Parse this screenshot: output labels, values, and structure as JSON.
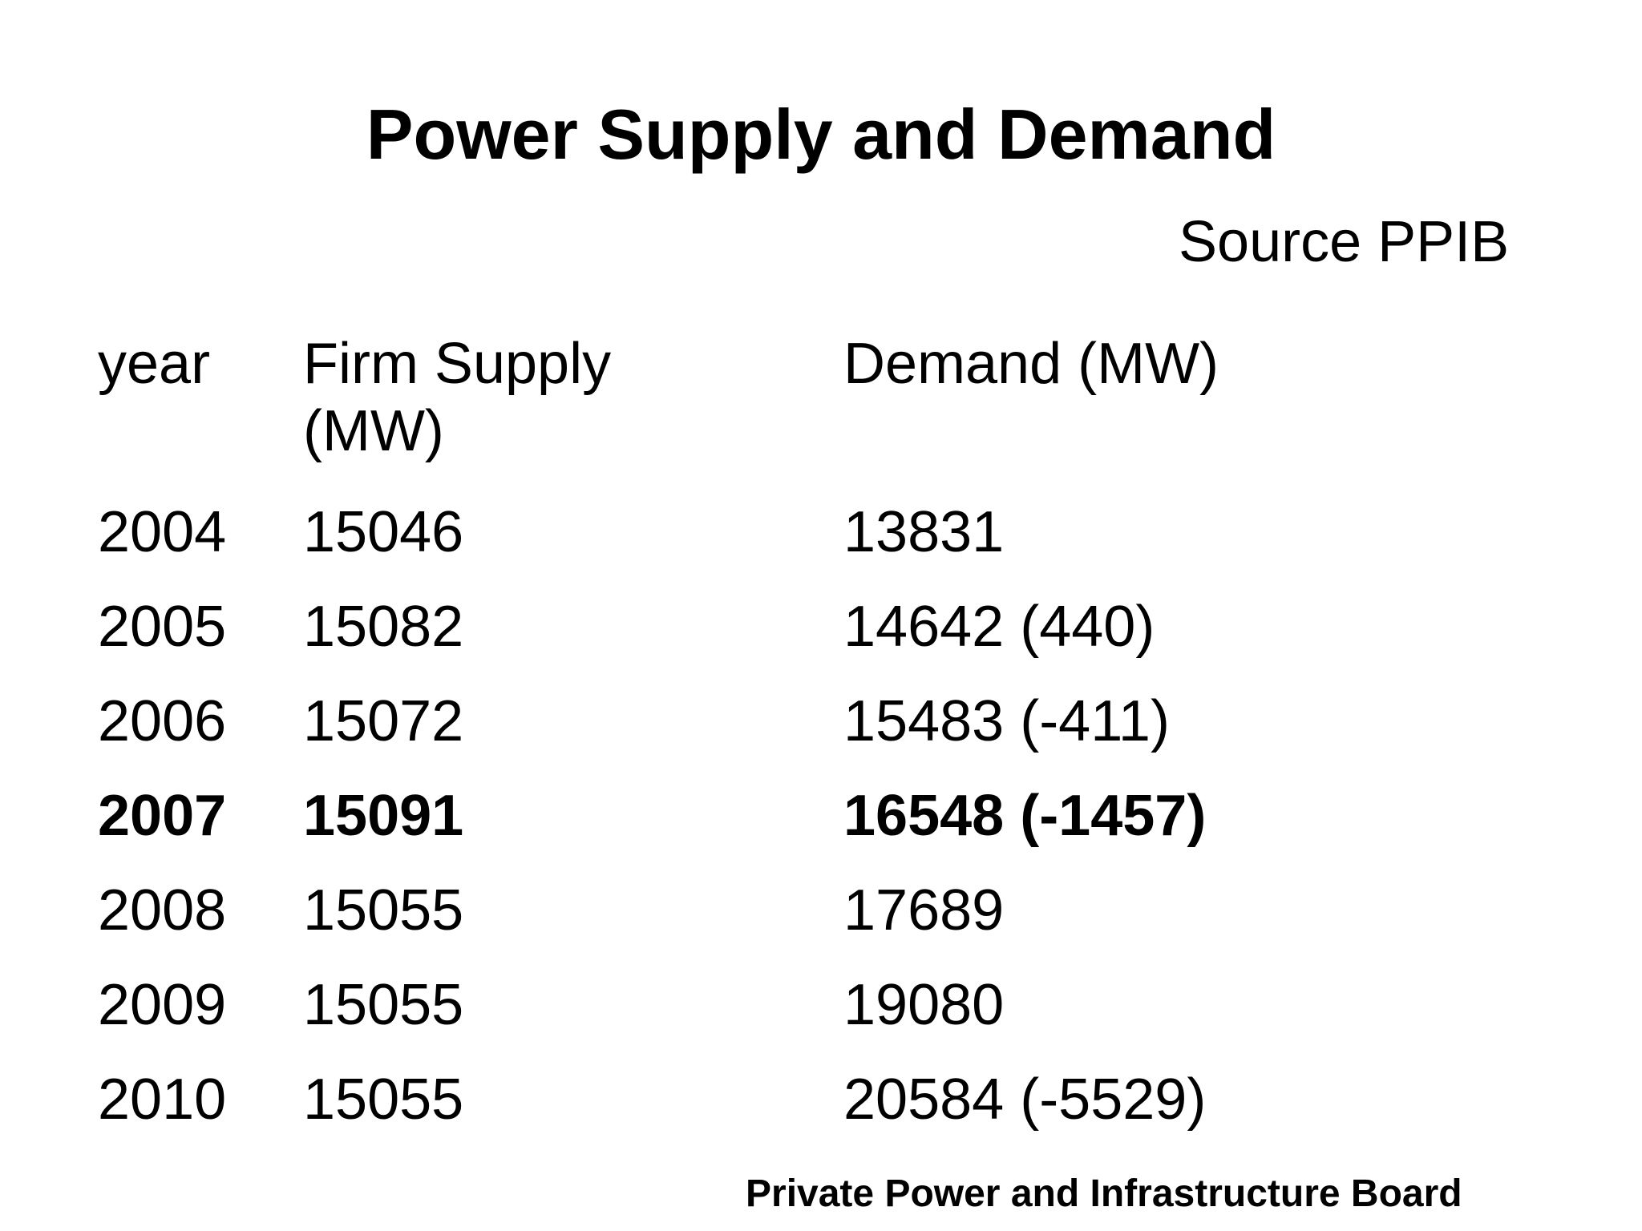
{
  "slide": {
    "title": "Power Supply and Demand",
    "source": "Source PPIB",
    "footer": "Private Power and Infrastructure Board"
  },
  "table": {
    "columns": [
      "year",
      "Firm Supply (MW)",
      "Demand (MW)"
    ],
    "rows": [
      {
        "year": "2004",
        "supply": "15046",
        "demand": "13831",
        "bold": false
      },
      {
        "year": "2005",
        "supply": "15082",
        "demand": "14642 (440)",
        "bold": false
      },
      {
        "year": "2006",
        "supply": "15072",
        "demand": "15483 (-411)",
        "bold": false
      },
      {
        "year": "2007",
        "supply": "15091",
        "demand": "16548 (-1457)",
        "bold": true
      },
      {
        "year": "2008",
        "supply": "15055",
        "demand": "17689",
        "bold": false
      },
      {
        "year": "2009",
        "supply": "15055",
        "demand": "19080",
        "bold": false
      },
      {
        "year": "2010",
        "supply": "15055",
        "demand": "20584 (-5529)",
        "bold": false
      }
    ]
  }
}
